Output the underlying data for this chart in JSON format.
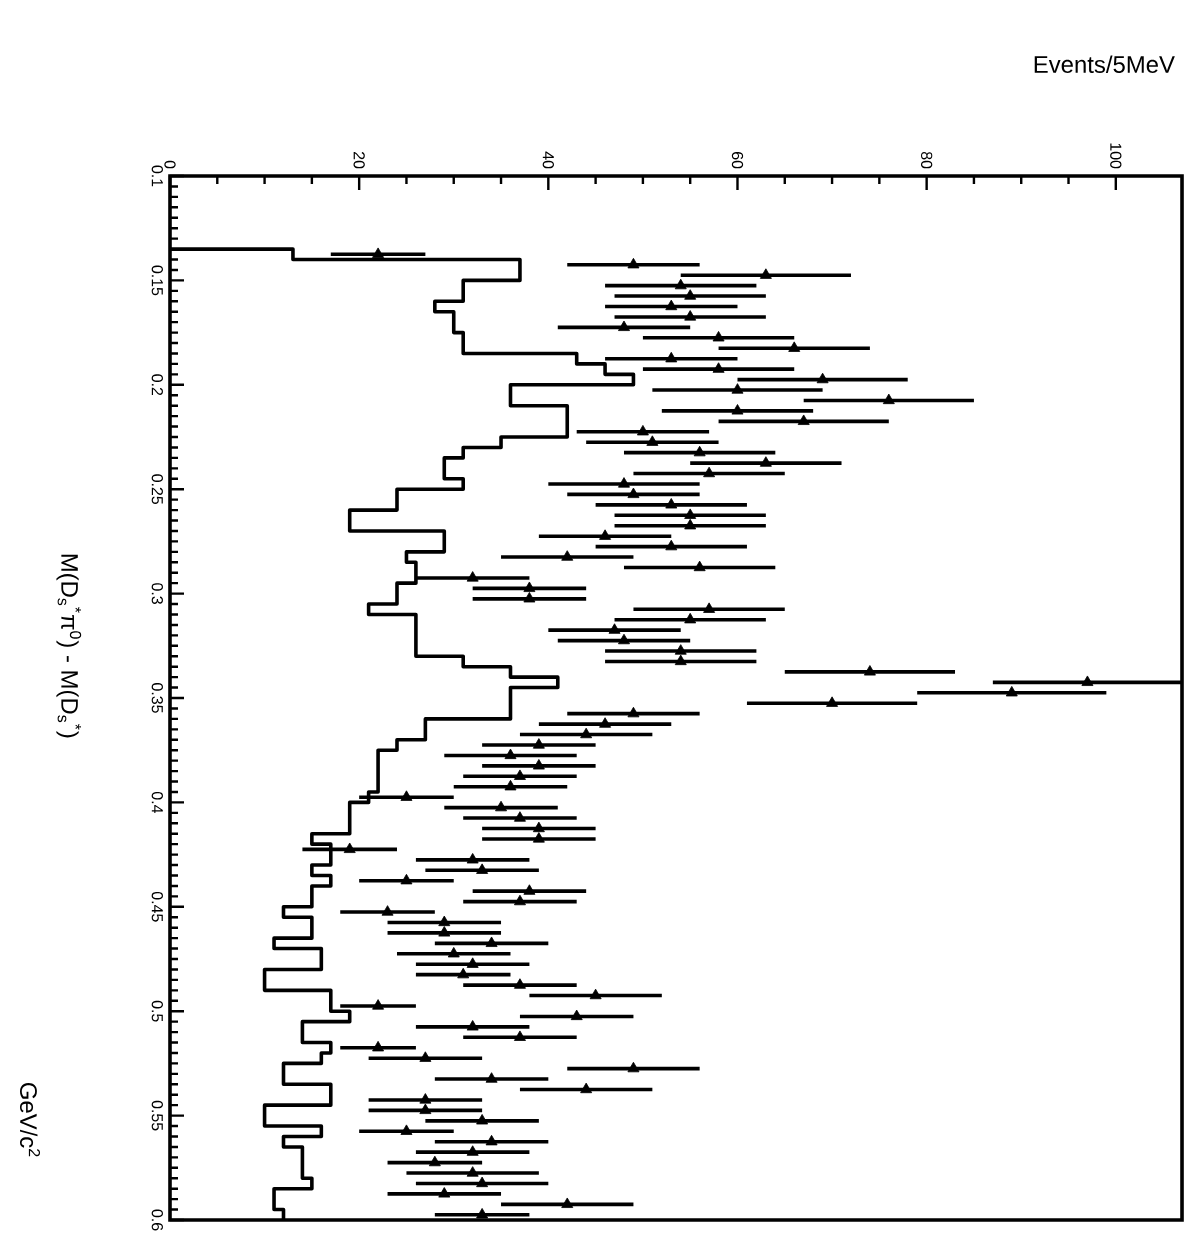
{
  "chart_data": {
    "type": "scatter",
    "xlabel": "Events/5MeV",
    "ylabel": "M(D$_{s}$$^{*}$π$^{0}$) - M(D$_{s}$$^{*}$)",
    "annotations": [
      "GeV/c$^{2}$"
    ],
    "xlim": [
      0,
      107
    ],
    "xticks": [
      0,
      20,
      40,
      60,
      80,
      100
    ],
    "ylim": [
      0.6,
      0.1
    ],
    "yticks": [
      0.1,
      0.15,
      0.2,
      0.25,
      0.3,
      0.35,
      0.4,
      0.45,
      0.5,
      0.55,
      0.6
    ],
    "series": [
      {
        "type": "line",
        "color": "#000000",
        "line_style": "solid",
        "x": [
          0,
          13,
          13,
          37,
          37,
          31,
          31,
          28,
          28,
          30,
          30,
          31,
          31,
          43,
          43,
          46,
          46,
          49,
          49,
          36,
          36,
          42,
          42,
          35,
          35,
          31,
          31,
          29,
          29,
          31,
          31,
          24,
          24,
          19,
          19,
          29,
          29,
          25,
          25,
          26,
          26,
          24,
          24,
          21,
          21,
          26,
          26,
          31,
          31,
          36,
          36,
          41,
          41,
          36,
          36,
          27,
          27,
          24,
          24,
          22,
          22,
          21,
          21,
          19,
          19,
          15,
          15,
          17,
          17,
          15,
          15,
          17,
          17,
          15,
          15,
          12,
          12,
          15,
          15,
          11,
          11,
          16,
          16,
          10,
          10,
          17,
          17,
          19,
          19,
          14,
          14,
          17,
          17,
          16,
          16,
          12,
          12,
          17,
          17,
          10,
          10,
          16,
          16,
          12,
          12,
          14,
          14,
          15,
          15,
          11,
          11,
          12,
          12
        ],
        "values": [
          0.135,
          0.135,
          0.14,
          0.14,
          0.15,
          0.15,
          0.16,
          0.16,
          0.165,
          0.165,
          0.175,
          0.175,
          0.185,
          0.185,
          0.19,
          0.19,
          0.195,
          0.195,
          0.2,
          0.2,
          0.21,
          0.21,
          0.225,
          0.225,
          0.23,
          0.23,
          0.235,
          0.235,
          0.245,
          0.245,
          0.25,
          0.25,
          0.26,
          0.26,
          0.27,
          0.27,
          0.28,
          0.28,
          0.285,
          0.285,
          0.295,
          0.295,
          0.305,
          0.305,
          0.31,
          0.31,
          0.33,
          0.33,
          0.335,
          0.335,
          0.34,
          0.34,
          0.345,
          0.345,
          0.36,
          0.36,
          0.37,
          0.37,
          0.375,
          0.375,
          0.395,
          0.395,
          0.4,
          0.4,
          0.415,
          0.415,
          0.42,
          0.42,
          0.43,
          0.43,
          0.435,
          0.435,
          0.44,
          0.44,
          0.45,
          0.45,
          0.455,
          0.455,
          0.465,
          0.465,
          0.47,
          0.47,
          0.48,
          0.48,
          0.49,
          0.49,
          0.5,
          0.5,
          0.505,
          0.505,
          0.515,
          0.515,
          0.52,
          0.52,
          0.525,
          0.525,
          0.535,
          0.535,
          0.545,
          0.545,
          0.555,
          0.555,
          0.56,
          0.56,
          0.565,
          0.565,
          0.58,
          0.58,
          0.585,
          0.585,
          0.595,
          0.595,
          0.6
        ]
      },
      {
        "color": "#000000",
        "marker": "triangle",
        "x": [
          22,
          49,
          63,
          54,
          55,
          53,
          55,
          48,
          58,
          66,
          53,
          58,
          69,
          60,
          76,
          60,
          67,
          50,
          51,
          56,
          63,
          57,
          48,
          49,
          53,
          55,
          55,
          46,
          53,
          42,
          56,
          32,
          38,
          38,
          57,
          55,
          47,
          48,
          54,
          54,
          74,
          97,
          89,
          70,
          49,
          46,
          44,
          39,
          36,
          39,
          37,
          36,
          25,
          35,
          37,
          39,
          39,
          19,
          32,
          33,
          25,
          38,
          37,
          23,
          29,
          29,
          34,
          30,
          32,
          31,
          37,
          45,
          22,
          43,
          32,
          37,
          22,
          27,
          49,
          34,
          44,
          27,
          27,
          33,
          25,
          34,
          32,
          28,
          32,
          33,
          29,
          42,
          33
        ],
        "values": [
          0.1375,
          0.1425,
          0.1475,
          0.1525,
          0.1575,
          0.1625,
          0.1675,
          0.1725,
          0.1775,
          0.1825,
          0.1875,
          0.1925,
          0.1975,
          0.2025,
          0.2075,
          0.2125,
          0.2175,
          0.2225,
          0.2275,
          0.2325,
          0.2375,
          0.2425,
          0.2475,
          0.2525,
          0.2575,
          0.2625,
          0.2675,
          0.2725,
          0.2775,
          0.2825,
          0.2875,
          0.2925,
          0.2975,
          0.3025,
          0.3075,
          0.3125,
          0.3175,
          0.3225,
          0.3275,
          0.3325,
          0.3375,
          0.3425,
          0.3475,
          0.3525,
          0.3575,
          0.3625,
          0.3675,
          0.3725,
          0.3775,
          0.3825,
          0.3875,
          0.3925,
          0.3975,
          0.4025,
          0.4075,
          0.4125,
          0.4175,
          0.4225,
          0.4275,
          0.4325,
          0.4375,
          0.4425,
          0.4475,
          0.4525,
          0.4575,
          0.4625,
          0.4675,
          0.4725,
          0.4775,
          0.4825,
          0.4875,
          0.4925,
          0.4975,
          0.5025,
          0.5075,
          0.5125,
          0.5175,
          0.5225,
          0.5275,
          0.5325,
          0.5375,
          0.5425,
          0.5475,
          0.5525,
          0.5575,
          0.5625,
          0.5675,
          0.5725,
          0.5775,
          0.5825,
          0.5875,
          0.5925,
          0.5975
        ],
        "xerrors": [
          5,
          7,
          9,
          8,
          8,
          7,
          8,
          7,
          8,
          8,
          7,
          8,
          9,
          9,
          9,
          8,
          9,
          7,
          7,
          8,
          8,
          8,
          8,
          7,
          8,
          8,
          8,
          7,
          8,
          7,
          8,
          6,
          6,
          6,
          8,
          8,
          7,
          7,
          8,
          8,
          9,
          10,
          10,
          9,
          7,
          7,
          7,
          6,
          7,
          6,
          6,
          6,
          5,
          6,
          6,
          6,
          6,
          5,
          6,
          6,
          5,
          6,
          6,
          5,
          6,
          6,
          6,
          6,
          6,
          5,
          6,
          7,
          4,
          6,
          6,
          6,
          4,
          6,
          7,
          6,
          7,
          6,
          6,
          6,
          5,
          6,
          6,
          5,
          7,
          7,
          6,
          7,
          5
        ]
      }
    ]
  }
}
